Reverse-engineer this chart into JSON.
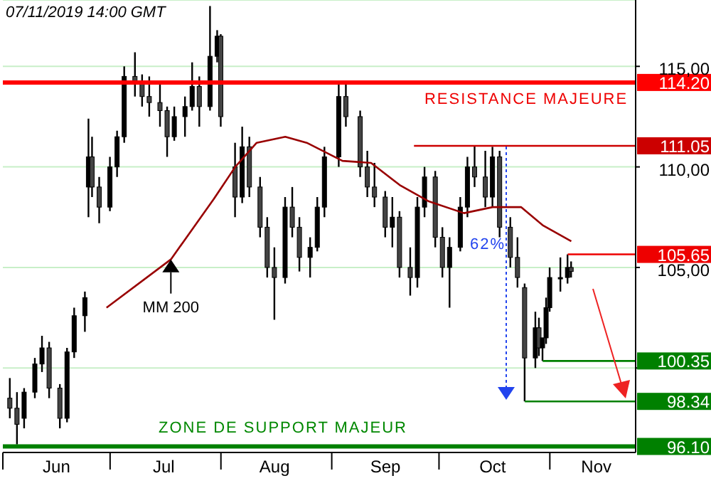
{
  "chart_data": {
    "type": "candlestick",
    "x": [
      "2019-06-03",
      "2019-06-05",
      "2019-06-07",
      "2019-06-10",
      "2019-06-12",
      "2019-06-14",
      "2019-06-17",
      "2019-06-19",
      "2019-06-21",
      "2019-06-24",
      "2019-06-25",
      "2019-06-26",
      "2019-06-28",
      "2019-07-01",
      "2019-07-03",
      "2019-07-05",
      "2019-07-08",
      "2019-07-10",
      "2019-07-12",
      "2019-07-15",
      "2019-07-17",
      "2019-07-19",
      "2019-07-22",
      "2019-07-24",
      "2019-07-26",
      "2019-07-29",
      "2019-07-31",
      "2019-08-01",
      "2019-08-05",
      "2019-08-07",
      "2019-08-09",
      "2019-08-12",
      "2019-08-14",
      "2019-08-16",
      "2019-08-19",
      "2019-08-21",
      "2019-08-23",
      "2019-08-26",
      "2019-08-28",
      "2019-08-30",
      "2019-09-03",
      "2019-09-05",
      "2019-09-09",
      "2019-09-11",
      "2019-09-13",
      "2019-09-16",
      "2019-09-18",
      "2019-09-20",
      "2019-09-23",
      "2019-09-25",
      "2019-09-27",
      "2019-09-30",
      "2019-10-02",
      "2019-10-04",
      "2019-10-07",
      "2019-10-09",
      "2019-10-11",
      "2019-10-14",
      "2019-10-16",
      "2019-10-18",
      "2019-10-21",
      "2019-10-23",
      "2019-10-25",
      "2019-10-28",
      "2019-10-29",
      "2019-10-30",
      "2019-10-31",
      "2019-11-01",
      "2019-11-04",
      "2019-11-06",
      "2019-11-07"
    ],
    "ohlc": [
      [
        98.5,
        99.5,
        97.5,
        98.0
      ],
      [
        98.0,
        98.8,
        96.2,
        97.2
      ],
      [
        97.5,
        99.0,
        97.0,
        98.8
      ],
      [
        98.8,
        100.5,
        98.5,
        100.2
      ],
      [
        100.2,
        101.6,
        99.8,
        101.0
      ],
      [
        101.0,
        101.3,
        98.5,
        99.0
      ],
      [
        99.0,
        99.2,
        97.0,
        97.5
      ],
      [
        97.5,
        101.0,
        97.3,
        100.8
      ],
      [
        100.8,
        103.0,
        100.5,
        102.6
      ],
      [
        102.6,
        103.8,
        101.8,
        103.5
      ],
      [
        109.0,
        112.4,
        107.5,
        110.5
      ],
      [
        110.5,
        111.5,
        108.5,
        109.0
      ],
      [
        109.0,
        109.5,
        107.2,
        108.0
      ],
      [
        108.0,
        110.5,
        107.8,
        110.0
      ],
      [
        110.0,
        111.8,
        109.5,
        111.5
      ],
      [
        111.5,
        115.0,
        111.2,
        114.5
      ],
      [
        114.5,
        115.7,
        113.5,
        114.2
      ],
      [
        114.2,
        114.6,
        113.0,
        113.5
      ],
      [
        113.5,
        114.5,
        112.5,
        113.2
      ],
      [
        113.2,
        114.3,
        112.0,
        112.8
      ],
      [
        112.8,
        113.0,
        110.5,
        111.5
      ],
      [
        111.5,
        113.0,
        111.3,
        112.5
      ],
      [
        112.5,
        113.5,
        111.5,
        113.0
      ],
      [
        113.0,
        115.2,
        112.8,
        114.0
      ],
      [
        114.0,
        114.5,
        112.0,
        113.0
      ],
      [
        113.0,
        118.0,
        112.8,
        115.5
      ],
      [
        115.5,
        116.8,
        115.2,
        116.5
      ],
      [
        116.5,
        116.6,
        112.0,
        112.5
      ],
      [
        110.0,
        111.2,
        107.5,
        108.5
      ],
      [
        108.5,
        112.0,
        108.2,
        111.0
      ],
      [
        111.0,
        111.5,
        108.5,
        109.0
      ],
      [
        109.0,
        109.5,
        106.5,
        107.0
      ],
      [
        107.0,
        107.5,
        104.5,
        105.0
      ],
      [
        105.0,
        106.0,
        102.4,
        104.5
      ],
      [
        104.5,
        108.5,
        104.2,
        108.0
      ],
      [
        108.0,
        109.0,
        106.5,
        107.0
      ],
      [
        107.0,
        107.5,
        104.8,
        105.5
      ],
      [
        105.5,
        106.5,
        104.5,
        106.0
      ],
      [
        106.0,
        108.5,
        105.8,
        108.0
      ],
      [
        108.0,
        111.0,
        107.5,
        110.5
      ],
      [
        110.5,
        114.2,
        110.0,
        113.5
      ],
      [
        113.5,
        114.2,
        112.0,
        112.5
      ],
      [
        112.5,
        112.8,
        109.5,
        110.0
      ],
      [
        110.0,
        110.8,
        108.5,
        109.0
      ],
      [
        109.0,
        110.2,
        108.0,
        108.5
      ],
      [
        108.5,
        108.8,
        106.5,
        107.0
      ],
      [
        107.0,
        108.5,
        106.0,
        107.5
      ],
      [
        107.5,
        107.8,
        104.5,
        105.0
      ],
      [
        105.0,
        106.0,
        103.6,
        104.5
      ],
      [
        104.5,
        108.5,
        104.0,
        108.0
      ],
      [
        108.0,
        110.0,
        107.5,
        109.5
      ],
      [
        109.5,
        109.8,
        106.0,
        106.5
      ],
      [
        106.5,
        107.0,
        104.5,
        105.0
      ],
      [
        105.0,
        106.5,
        103.0,
        106.0
      ],
      [
        106.0,
        108.5,
        105.8,
        108.0
      ],
      [
        108.0,
        110.5,
        107.5,
        110.0
      ],
      [
        110.0,
        111.05,
        109.0,
        109.5
      ],
      [
        109.5,
        110.8,
        108.0,
        108.5
      ],
      [
        108.5,
        111.0,
        108.0,
        110.5
      ],
      [
        110.5,
        110.8,
        106.5,
        107.0
      ],
      [
        107.0,
        107.5,
        105.0,
        105.5
      ],
      [
        105.5,
        106.5,
        104.0,
        104.5
      ],
      [
        104.0,
        104.2,
        98.34,
        100.5
      ],
      [
        100.5,
        102.8,
        100.0,
        102.0
      ],
      [
        102.0,
        102.5,
        100.6,
        101.0
      ],
      [
        101.0,
        101.5,
        100.35,
        101.5
      ],
      [
        101.5,
        103.5,
        101.2,
        103.0
      ],
      [
        103.0,
        105.0,
        102.8,
        104.5
      ],
      [
        104.5,
        105.5,
        103.8,
        104.5
      ],
      [
        104.5,
        105.65,
        104.2,
        105.0
      ],
      [
        105.0,
        105.3,
        104.5,
        104.8
      ]
    ],
    "series": [
      {
        "type": "line",
        "name": "MM 200",
        "color": "#990000",
        "x": [
          "2019-06-30",
          "2019-07-18",
          "2019-07-30",
          "2019-08-05",
          "2019-08-11",
          "2019-08-19",
          "2019-08-25",
          "2019-09-04",
          "2019-09-12",
          "2019-09-20",
          "2019-09-28",
          "2019-10-08",
          "2019-10-16",
          "2019-10-24",
          "2019-10-30",
          "2019-11-07"
        ],
        "values": [
          103.0,
          105.4,
          108.4,
          110.0,
          111.2,
          111.5,
          111.2,
          110.3,
          110.2,
          109.1,
          108.3,
          107.7,
          108.0,
          108.0,
          107.1,
          106.3
        ]
      },
      {
        "type": "line",
        "color": "#cc0000",
        "x": [
          "2019-09-24",
          "2019-11-25"
        ],
        "values": [
          111.05,
          111.05
        ],
        "value_labels": [
          null,
          "111.05"
        ]
      },
      {
        "type": "line",
        "color": "#ee0000",
        "x": [
          "2019-11-06",
          "2019-11-25"
        ],
        "values": [
          105.65,
          105.65
        ],
        "value_labels": [
          null,
          "105.65"
        ]
      },
      {
        "type": "line",
        "color": "#008000",
        "x": [
          "2019-10-30",
          "2019-11-25"
        ],
        "values": [
          100.35,
          100.35
        ],
        "value_labels": [
          null,
          "100.35"
        ]
      },
      {
        "type": "line",
        "color": "#008000",
        "x": [
          "2019-10-25",
          "2019-11-25"
        ],
        "values": [
          98.34,
          98.34
        ],
        "value_labels": [
          null,
          "98.34"
        ]
      }
    ],
    "ref_lines": [
      {
        "axis": "y",
        "value": 114.2,
        "label": "114.20",
        "color": "#ff0000"
      },
      {
        "axis": "y",
        "value": 96.1,
        "label": "96.10",
        "color": "#008000"
      }
    ],
    "annotations": [
      "07/11/2019 14:00 GMT",
      "RESISTANCE MAJEURE",
      "62%",
      "ZONE DE SUPPORT MAJEUR"
    ],
    "xlim": [
      "2019-06-01",
      "2019-11-25"
    ],
    "xticks": [
      {
        "value": "2019-06-01",
        "label": null
      },
      {
        "value": "2019-06-16",
        "label": "Jun"
      },
      {
        "value": "2019-07-01",
        "label": null
      },
      {
        "value": "2019-07-16",
        "label": "Jul"
      },
      {
        "value": "2019-08-01",
        "label": null
      },
      {
        "value": "2019-08-16",
        "label": "Aug"
      },
      {
        "value": "2019-09-01",
        "label": null
      },
      {
        "value": "2019-09-16",
        "label": "Sep"
      },
      {
        "value": "2019-10-01",
        "label": null
      },
      {
        "value": "2019-10-16",
        "label": "Oct"
      },
      {
        "value": "2019-11-01",
        "label": null
      },
      {
        "value": "2019-11-14",
        "label": "Nov"
      }
    ],
    "ylim": [
      95.8,
      118.3
    ],
    "yticks": [
      {
        "value": 100,
        "label": null
      },
      {
        "value": 105,
        "label": "105,00"
      },
      {
        "value": 110,
        "label": "110,00"
      },
      {
        "value": 115,
        "label": "115,00"
      }
    ],
    "grid": "y"
  }
}
